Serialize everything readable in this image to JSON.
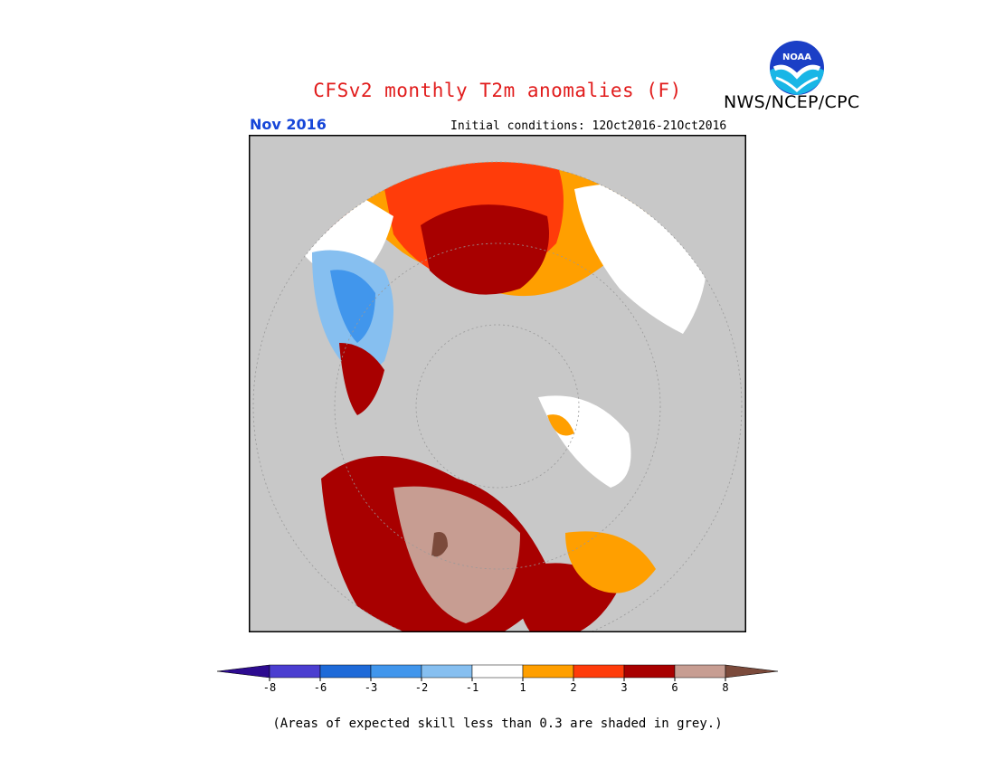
{
  "header": {
    "title": "CFSv2 monthly T2m anomalies (F)",
    "agency": "NWS/NCEP/CPC",
    "logo_text": "NOAA",
    "month": "Nov 2016",
    "initial_conditions": "Initial conditions: 12Oct2016-21Oct2016"
  },
  "legend": {
    "ticks": [
      "-8",
      "-6",
      "-3",
      "-2",
      "-1",
      "1",
      "2",
      "3",
      "6",
      "8"
    ],
    "colors": [
      "#2d0b90",
      "#4b3ed0",
      "#1e6ad8",
      "#4196ec",
      "#86bff0",
      "#ffffff",
      "#ff9f00",
      "#ff3c0a",
      "#a80000",
      "#c79d92",
      "#7b4a3b"
    ]
  },
  "note": "(Areas of expected skill less than 0.3 are shaded in grey.)",
  "colors": {
    "background_grey": "#c8c8c8",
    "title_red": "#e11c1c",
    "month_blue": "#1646d8"
  }
}
